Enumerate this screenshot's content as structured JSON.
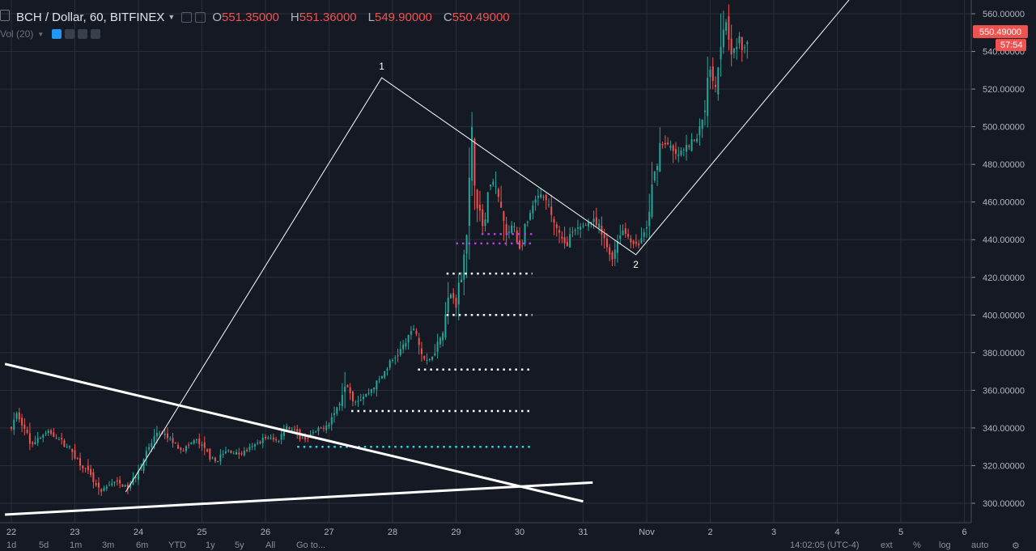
{
  "header": {
    "symbol": "BCH / Dollar, 60, BITFINEX",
    "open_label": "O",
    "open": "551.35000",
    "high_label": "H",
    "high": "551.36000",
    "low_label": "L",
    "low": "549.90000",
    "close_label": "C",
    "close": "550.49000"
  },
  "volume_label": "Vol (20)",
  "price_tags": {
    "last": "550.49000",
    "countdown": "57:54"
  },
  "toolbar_bottom": [
    "1d",
    "5d",
    "1m",
    "3m",
    "6m",
    "YTD",
    "1y",
    "5y",
    "All",
    "Go to..."
  ],
  "status_bottom": {
    "time": "14:02:05 (UTC-4)",
    "ext": "ext",
    "pct": "%",
    "log": "log",
    "auto": "auto"
  },
  "colors": {
    "background": "#151924",
    "up": "#26a69a",
    "down": "#ef5350",
    "grid": "#2a2e39",
    "tag": "#ef5350"
  },
  "chart_data": {
    "type": "candlestick",
    "title": "BCH / Dollar, 60, BITFINEX",
    "y_ticks": [
      "300.00000",
      "320.00000",
      "340.00000",
      "360.00000",
      "380.00000",
      "400.00000",
      "420.00000",
      "440.00000",
      "460.00000",
      "480.00000",
      "500.00000",
      "520.00000",
      "540.00000",
      "560.00000"
    ],
    "x_ticks": [
      "22",
      "23",
      "24",
      "25",
      "26",
      "27",
      "28",
      "29",
      "30",
      "31",
      "Nov",
      "2",
      "3",
      "4",
      "5",
      "6"
    ],
    "ylim": [
      292,
      566
    ],
    "price_path": [
      [
        22.0,
        340
      ],
      [
        22.1,
        348
      ],
      [
        22.3,
        332
      ],
      [
        22.6,
        338
      ],
      [
        22.9,
        330
      ],
      [
        23.2,
        316
      ],
      [
        23.4,
        305
      ],
      [
        23.6,
        312
      ],
      [
        23.85,
        308
      ],
      [
        24.1,
        325
      ],
      [
        24.3,
        338
      ],
      [
        24.5,
        334
      ],
      [
        24.7,
        328
      ],
      [
        24.9,
        334
      ],
      [
        25.1,
        326
      ],
      [
        25.2,
        322
      ],
      [
        25.4,
        328
      ],
      [
        25.6,
        326
      ],
      [
        25.8,
        330
      ],
      [
        26.0,
        335
      ],
      [
        26.2,
        333
      ],
      [
        26.3,
        342
      ],
      [
        26.45,
        338
      ],
      [
        26.6,
        334
      ],
      [
        26.8,
        338
      ],
      [
        27.0,
        343
      ],
      [
        27.15,
        352
      ],
      [
        27.25,
        366
      ],
      [
        27.4,
        354
      ],
      [
        27.6,
        358
      ],
      [
        27.8,
        366
      ],
      [
        27.95,
        374
      ],
      [
        28.1,
        380
      ],
      [
        28.25,
        388
      ],
      [
        28.35,
        394
      ],
      [
        28.45,
        380
      ],
      [
        28.55,
        374
      ],
      [
        28.7,
        384
      ],
      [
        28.8,
        394
      ],
      [
        28.9,
        412
      ],
      [
        29.0,
        406
      ],
      [
        29.1,
        425
      ],
      [
        29.2,
        460
      ],
      [
        29.25,
        492
      ],
      [
        29.35,
        455
      ],
      [
        29.45,
        448
      ],
      [
        29.55,
        474
      ],
      [
        29.7,
        458
      ],
      [
        29.8,
        440
      ],
      [
        29.9,
        450
      ],
      [
        30.0,
        434
      ],
      [
        30.15,
        452
      ],
      [
        30.3,
        464
      ],
      [
        30.45,
        458
      ],
      [
        30.6,
        444
      ],
      [
        30.7,
        436
      ],
      [
        30.8,
        442
      ],
      [
        31.0,
        448
      ],
      [
        31.15,
        450
      ],
      [
        31.25,
        446
      ],
      [
        31.35,
        438
      ],
      [
        31.45,
        430
      ],
      [
        31.6,
        446
      ],
      [
        31.75,
        440
      ],
      [
        31.85,
        436
      ],
      [
        32.0,
        446
      ],
      [
        32.1,
        470
      ],
      [
        32.2,
        490
      ],
      [
        32.3,
        492
      ],
      [
        32.45,
        484
      ],
      [
        32.6,
        488
      ],
      [
        32.8,
        494
      ],
      [
        32.9,
        508
      ],
      [
        33.0,
        532
      ],
      [
        33.1,
        520
      ],
      [
        33.15,
        548
      ],
      [
        33.25,
        558
      ],
      [
        33.35,
        538
      ],
      [
        33.45,
        546
      ],
      [
        33.55,
        540
      ],
      [
        33.6,
        550.49
      ]
    ],
    "drawings": {
      "wave_points": [
        {
          "label": "1",
          "x": 27.83,
          "y": 526
        },
        {
          "label": "2",
          "x": 31.83,
          "y": 432
        }
      ],
      "wave_line": [
        [
          23.8,
          306
        ],
        [
          27.83,
          526
        ],
        [
          31.83,
          432
        ],
        [
          35.3,
          572
        ]
      ],
      "trend_lines": [
        [
          [
            21.9,
            374
          ],
          [
            31.0,
            301
          ]
        ],
        [
          [
            21.9,
            294
          ],
          [
            31.15,
            311
          ]
        ]
      ],
      "levels": [
        {
          "x0": 29.0,
          "x1": 30.2,
          "y": 438,
          "color": "#b040e0"
        },
        {
          "x0": 29.4,
          "x1": 30.2,
          "y": 443,
          "color": "#b040e0"
        },
        {
          "x0": 28.85,
          "x1": 30.2,
          "y": 422,
          "color": "#ffffff"
        },
        {
          "x0": 28.85,
          "x1": 30.2,
          "y": 400,
          "color": "#ffffff"
        },
        {
          "x0": 28.4,
          "x1": 30.2,
          "y": 371,
          "color": "#ffffff"
        },
        {
          "x0": 27.35,
          "x1": 30.2,
          "y": 349,
          "color": "#ffffff"
        },
        {
          "x0": 26.5,
          "x1": 30.2,
          "y": 330,
          "color": "#26d7e0"
        }
      ]
    }
  }
}
